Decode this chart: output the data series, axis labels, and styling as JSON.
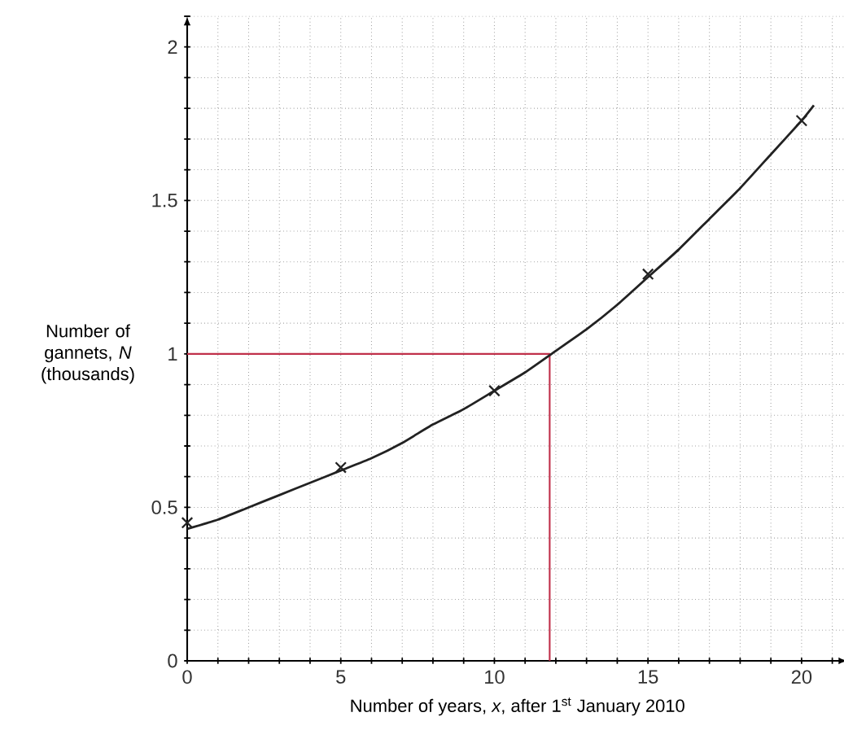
{
  "chart_data": {
    "type": "line",
    "xlabel": "Number of years, *x*, after 1$^{st}$ January 2010",
    "ylabel": "Number of gannets, *N* (thousands)",
    "xlim": [
      0,
      21.5
    ],
    "ylim": [
      0,
      2.1
    ],
    "xticks": [
      0,
      {
        "value": 1,
        "label": null
      },
      {
        "value": 2,
        "label": null
      },
      {
        "value": 3,
        "label": null
      },
      {
        "value": 4,
        "label": null
      },
      5,
      {
        "value": 6,
        "label": null
      },
      {
        "value": 7,
        "label": null
      },
      {
        "value": 8,
        "label": null
      },
      {
        "value": 9,
        "label": null
      },
      10,
      {
        "value": 11,
        "label": null
      },
      {
        "value": 12,
        "label": null
      },
      {
        "value": 13,
        "label": null
      },
      {
        "value": 14,
        "label": null
      },
      15,
      {
        "value": 16,
        "label": null
      },
      {
        "value": 17,
        "label": null
      },
      {
        "value": 18,
        "label": null
      },
      {
        "value": 19,
        "label": null
      },
      20,
      {
        "value": 21,
        "label": null
      }
    ],
    "yticks": [
      0,
      {
        "value": 0.1,
        "label": null
      },
      {
        "value": 0.2,
        "label": null
      },
      {
        "value": 0.3,
        "label": null
      },
      {
        "value": 0.4,
        "label": null
      },
      0.5,
      {
        "value": 0.6,
        "label": null
      },
      {
        "value": 0.7,
        "label": null
      },
      {
        "value": 0.8,
        "label": null
      },
      {
        "value": 0.9,
        "label": null
      },
      1,
      {
        "value": 1.1,
        "label": null
      },
      {
        "value": 1.2,
        "label": null
      },
      {
        "value": 1.3,
        "label": null
      },
      {
        "value": 1.4,
        "label": null
      },
      1.5,
      {
        "value": 1.6,
        "label": null
      },
      {
        "value": 1.7,
        "label": null
      },
      {
        "value": 1.8,
        "label": null
      },
      {
        "value": 1.9,
        "label": null
      },
      2,
      {
        "value": 2.1,
        "label": null
      }
    ],
    "grid": true,
    "series": [
      {
        "color": "#c0304a",
        "marker": "none",
        "x": [
          0,
          11.8,
          11.8
        ],
        "values": [
          1,
          1,
          0
        ]
      },
      {
        "color": "#222222",
        "marker": "none",
        "x": [
          0,
          1,
          2,
          3,
          4,
          5,
          6,
          7,
          8,
          9,
          10,
          11,
          12,
          13,
          14,
          15,
          16,
          17,
          18,
          19,
          20,
          20.4
        ],
        "values": [
          0.43,
          0.46,
          0.5,
          0.54,
          0.58,
          0.62,
          0.66,
          0.71,
          0.77,
          0.82,
          0.88,
          0.94,
          1.01,
          1.08,
          1.16,
          1.25,
          1.34,
          1.44,
          1.54,
          1.65,
          1.76,
          1.81
        ]
      },
      {
        "type": "scatter",
        "color": "#222222",
        "marker": "cross",
        "x": [
          0,
          5,
          10,
          15,
          20
        ],
        "values": [
          0.45,
          0.63,
          0.88,
          1.26,
          1.76
        ]
      }
    ]
  }
}
